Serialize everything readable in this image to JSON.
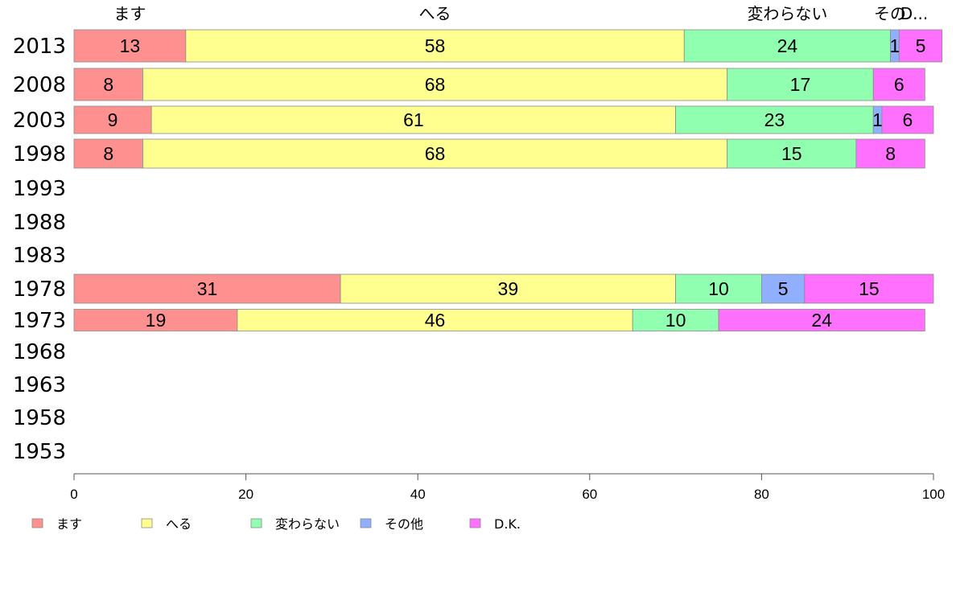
{
  "chart_data": {
    "type": "bar",
    "orientation": "horizontal",
    "stacked": true,
    "categories": [
      "2013",
      "2008",
      "2003",
      "1998",
      "1993",
      "1988",
      "1983",
      "1978",
      "1973",
      "1968",
      "1963",
      "1958",
      "1953"
    ],
    "series": [
      {
        "name": "ます",
        "color": "#ff9090",
        "values": [
          13,
          8,
          9,
          8,
          null,
          null,
          null,
          31,
          19,
          null,
          null,
          null,
          null
        ]
      },
      {
        "name": "へる",
        "color": "#ffff90",
        "values": [
          58,
          68,
          61,
          68,
          null,
          null,
          null,
          39,
          46,
          null,
          null,
          null,
          null
        ]
      },
      {
        "name": "変わらない",
        "color": "#90ffb0",
        "values": [
          24,
          17,
          23,
          15,
          null,
          null,
          null,
          10,
          10,
          null,
          null,
          null,
          null
        ]
      },
      {
        "name": "その他",
        "color": "#90b0ff",
        "values": [
          1,
          0,
          1,
          0,
          null,
          null,
          null,
          5,
          0,
          null,
          null,
          null,
          null
        ]
      },
      {
        "name": "D.K.",
        "color": "#ff70ff",
        "values": [
          5,
          6,
          6,
          8,
          null,
          null,
          null,
          15,
          24,
          null,
          null,
          null,
          null
        ]
      }
    ],
    "top_labels": [
      "ます",
      "へる",
      "変わらない",
      "その",
      "D..."
    ],
    "xlim": [
      0,
      100
    ],
    "xticks": [
      "0",
      "20",
      "40",
      "60",
      "80",
      "100"
    ],
    "legend_position": "bottom",
    "grid": false
  }
}
